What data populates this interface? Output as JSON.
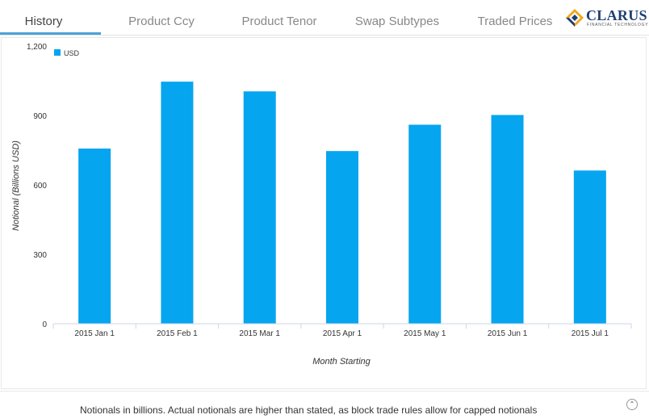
{
  "tabs": [
    {
      "label": "History",
      "active": true
    },
    {
      "label": "Product Ccy",
      "active": false
    },
    {
      "label": "Product Tenor",
      "active": false
    },
    {
      "label": "Swap Subtypes",
      "active": false
    },
    {
      "label": "Traded Prices",
      "active": false
    }
  ],
  "logo": {
    "word": "CLARUS",
    "subtitle": "FINANCIAL TECHNOLOGY"
  },
  "chart_data": {
    "type": "bar",
    "categories": [
      "2015 Jan 1",
      "2015 Feb 1",
      "2015 Mar 1",
      "2015 Apr 1",
      "2015 May 1",
      "2015 Jun 1",
      "2015 Jul 1"
    ],
    "series": [
      {
        "name": "USD",
        "color": "#06a5f0",
        "values": [
          757,
          1046,
          1004,
          746,
          860,
          902,
          662
        ]
      }
    ],
    "title": "",
    "xlabel": "Month Starting",
    "ylabel": "Notional (Billions USD)",
    "ylim": [
      0,
      1200
    ],
    "yticks": [
      0,
      300,
      600,
      900,
      1200
    ],
    "ytick_labels": [
      "0",
      "300",
      "600",
      "900",
      "1,200"
    ],
    "grid": false,
    "legend": "top-left"
  },
  "footer": {
    "note": "Notionals in billions. Actual notionals are higher than stated, as block trade rules allow for capped notionals"
  },
  "colors": {
    "accent": "#4aa3d8",
    "bar": "#06a5f0",
    "logo_blue": "#1f3f73",
    "logo_orange": "#f2a51a"
  }
}
